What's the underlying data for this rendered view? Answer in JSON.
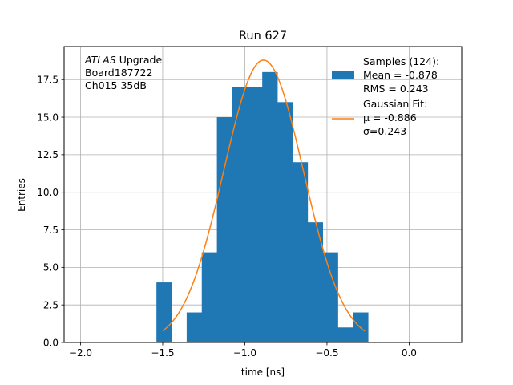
{
  "chart_data": {
    "type": "bar",
    "title": "Run 627",
    "xlabel": "time [ns]",
    "ylabel": "Entries",
    "xlim": [
      -2.1,
      0.32
    ],
    "ylim": [
      0,
      19.7
    ],
    "grid": true,
    "xticks": [
      -2.0,
      -1.5,
      -1.0,
      -0.5,
      0.0
    ],
    "xtick_labels": [
      "−2.0",
      "−1.5",
      "−1.0",
      "−0.5",
      "0.0"
    ],
    "yticks": [
      0.0,
      2.5,
      5.0,
      7.5,
      10.0,
      12.5,
      15.0,
      17.5
    ],
    "ytick_labels": [
      "0.0",
      "2.5",
      "5.0",
      "7.5",
      "10.0",
      "12.5",
      "15.0",
      "17.5"
    ],
    "bin_width": 0.092,
    "histogram": {
      "name": "Samples (124):",
      "color": "#1f77b4",
      "bin_starts": [
        -1.538,
        -1.354,
        -1.262,
        -1.17,
        -1.078,
        -0.986,
        -0.894,
        -0.802,
        -0.71,
        -0.618,
        -0.526,
        -0.434,
        -0.342
      ],
      "counts": [
        4,
        2,
        6,
        15,
        17,
        17,
        18,
        16,
        12,
        8,
        6,
        1,
        2
      ]
    },
    "fit": {
      "name": "Gaussian Fit:",
      "color": "#ff7f0e",
      "mu": -0.886,
      "sigma": 0.243,
      "amplitude": 18.8,
      "x_range": [
        -1.5,
        -0.27
      ]
    },
    "annotation_lines": [
      {
        "italic": "ATLAS",
        "text": " Upgrade"
      },
      {
        "italic": "",
        "text": " Board187722"
      },
      {
        "italic": "",
        "text": " Ch015 35dB"
      }
    ],
    "legend": {
      "position": "top-right",
      "samples_lines": [
        "Samples (124):",
        " Mean = -0.878",
        " RMS = 0.243"
      ],
      "fit_lines": [
        "Gaussian Fit:",
        " μ = -0.886",
        " σ=0.243"
      ]
    }
  }
}
